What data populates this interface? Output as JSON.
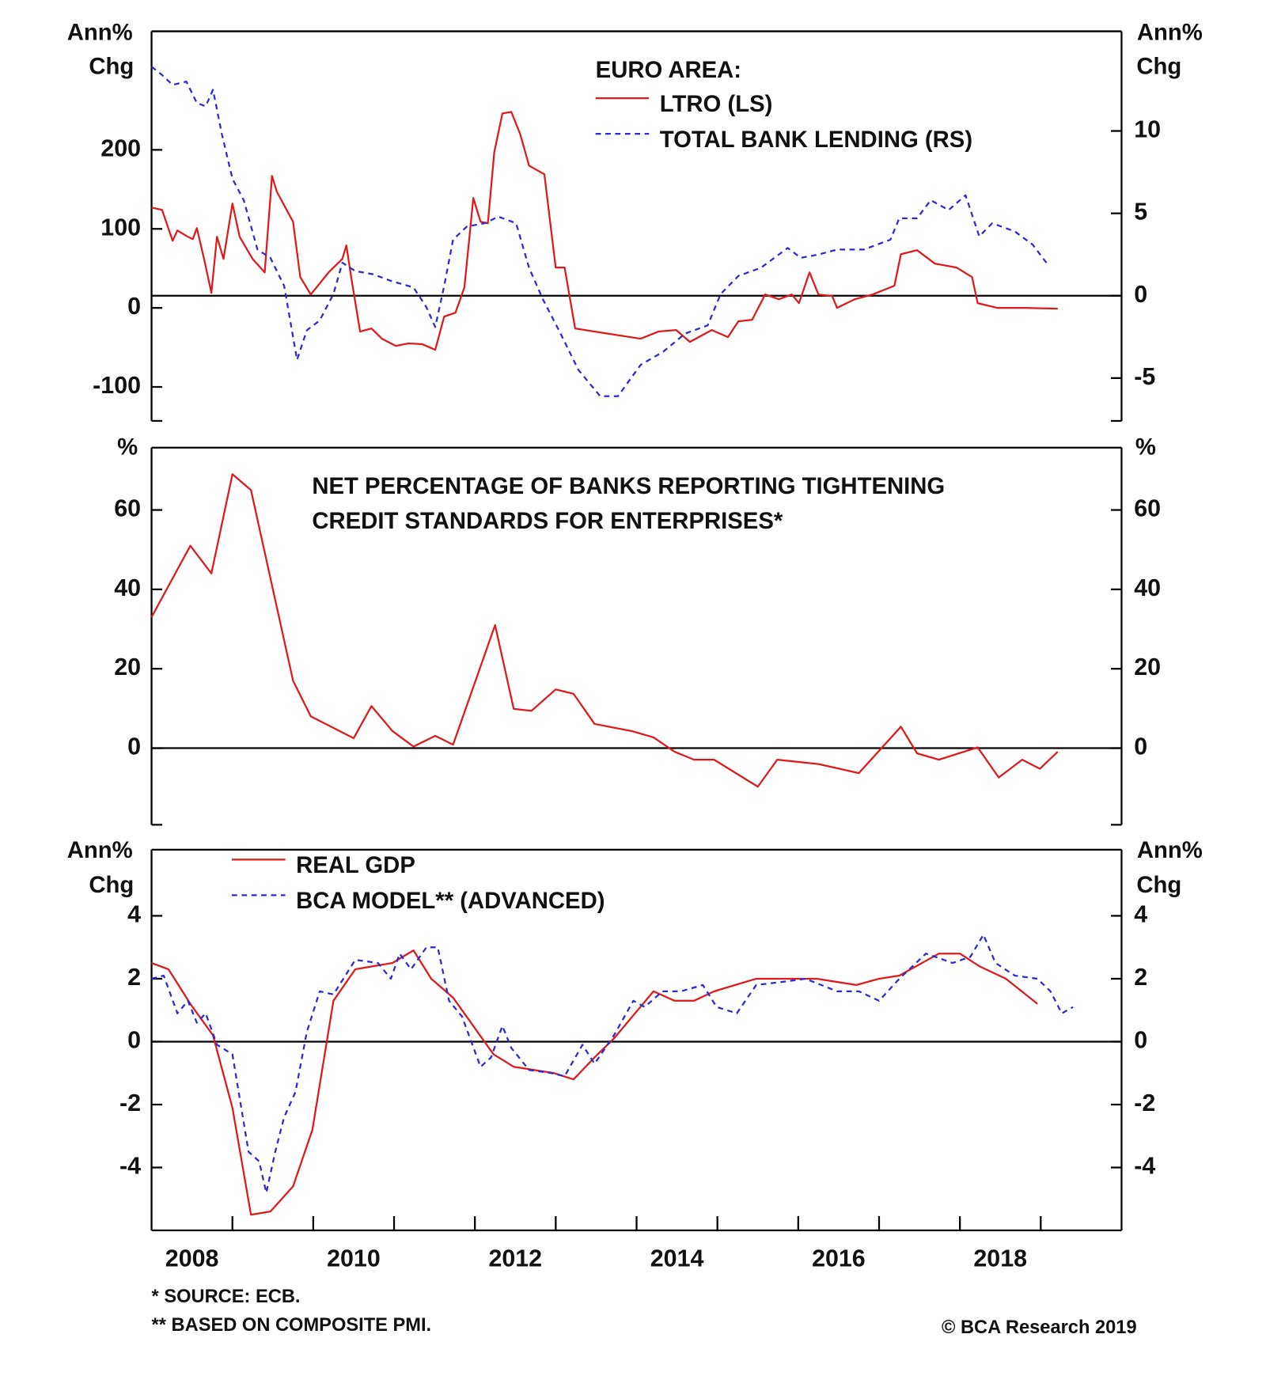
{
  "chart_data": [
    {
      "type": "line",
      "title": "EURO AREA:",
      "ylabel": [
        "Ann%",
        "Chg"
      ],
      "y2label": [
        "Ann%",
        "Chg"
      ],
      "xlim": [
        2008,
        2020
      ],
      "ylim": [
        -143,
        350
      ],
      "yticks": [
        -100,
        0,
        100,
        200
      ],
      "y2lim": [
        -7.6,
        16.05
      ],
      "y2ticks": [
        -5,
        0,
        5,
        10
      ],
      "zero_line": "y2",
      "legend": "top-center",
      "series": [
        {
          "name": "LTRO (LS)",
          "color": "#e0191b",
          "dash": false,
          "axis": "y",
          "x": [
            2008.0,
            2008.13,
            2008.26,
            2008.32,
            2008.45,
            2008.51,
            2008.56,
            2008.65,
            2008.74,
            2008.81,
            2008.89,
            2009.0,
            2009.09,
            2009.25,
            2009.4,
            2009.49,
            2009.55,
            2009.75,
            2009.84,
            2009.97,
            2010.19,
            2010.36,
            2010.41,
            2010.47,
            2010.58,
            2010.72,
            2010.85,
            2011.02,
            2011.18,
            2011.35,
            2011.51,
            2011.62,
            2011.76,
            2011.87,
            2011.98,
            2012.07,
            2012.16,
            2012.24,
            2012.34,
            2012.45,
            2012.56,
            2012.67,
            2012.86,
            2013.0,
            2013.11,
            2013.24,
            2013.61,
            2014.05,
            2014.27,
            2014.49,
            2014.66,
            2014.93,
            2015.13,
            2015.26,
            2015.43,
            2015.59,
            2015.76,
            2015.92,
            2016.01,
            2016.14,
            2016.25,
            2016.42,
            2016.48,
            2016.7,
            2016.92,
            2017.19,
            2017.27,
            2017.47,
            2017.69,
            2017.96,
            2018.15,
            2018.22,
            2018.46,
            2018.79,
            2019.21
          ],
          "values": [
            127,
            124,
            85,
            98,
            90,
            87,
            101,
            62,
            19,
            90,
            62,
            132,
            90,
            62,
            45,
            167,
            147,
            109,
            39,
            17,
            45,
            62,
            79,
            39,
            -30,
            -26,
            -39,
            -48,
            -45,
            -46,
            -53,
            -11,
            -6,
            26,
            139,
            109,
            107,
            197,
            246,
            248,
            220,
            180,
            169,
            51,
            51,
            -26,
            -32,
            -39,
            -30,
            -28,
            -43,
            -28,
            -37,
            -17,
            -15,
            17,
            11,
            17,
            6,
            45,
            17,
            15,
            0,
            11,
            17,
            28,
            68,
            73,
            56,
            51,
            39,
            6,
            0,
            0,
            -1
          ]
        },
        {
          "name": "TOTAL BANK LENDING (RS)",
          "color": "#2a2ad8",
          "dash": true,
          "axis": "y2",
          "x": [
            2008.0,
            2008.13,
            2008.26,
            2008.43,
            2008.56,
            2008.67,
            2008.76,
            2008.87,
            2009.0,
            2009.14,
            2009.31,
            2009.47,
            2009.64,
            2009.8,
            2009.92,
            2010.08,
            2010.25,
            2010.36,
            2010.52,
            2010.74,
            2010.96,
            2011.24,
            2011.4,
            2011.51,
            2011.62,
            2011.73,
            2011.9,
            2012.12,
            2012.29,
            2012.51,
            2012.67,
            2012.84,
            2013.06,
            2013.28,
            2013.55,
            2013.77,
            2014.05,
            2014.33,
            2014.6,
            2014.88,
            2015.04,
            2015.26,
            2015.54,
            2015.87,
            2016.03,
            2016.25,
            2016.48,
            2016.81,
            2017.14,
            2017.25,
            2017.47,
            2017.64,
            2017.86,
            2018.07,
            2018.24,
            2018.4,
            2018.68,
            2018.9,
            2019.07
          ],
          "values": [
            13.9,
            13.4,
            12.8,
            13.0,
            11.7,
            11.5,
            12.5,
            9.8,
            7.1,
            5.8,
            2.8,
            2.3,
            0.6,
            -3.9,
            -2.1,
            -1.5,
            0.1,
            2.0,
            1.5,
            1.3,
            0.9,
            0.5,
            -0.7,
            -1.9,
            0.6,
            3.4,
            4.2,
            4.4,
            4.8,
            4.4,
            1.7,
            -0.2,
            -2.3,
            -4.5,
            -6.1,
            -6.1,
            -4.2,
            -3.4,
            -2.3,
            -1.8,
            0.1,
            1.2,
            1.7,
            2.9,
            2.3,
            2.5,
            2.8,
            2.8,
            3.4,
            4.7,
            4.7,
            5.8,
            5.2,
            6.1,
            3.6,
            4.4,
            3.9,
            3.1,
            2.0
          ]
        }
      ]
    },
    {
      "type": "line",
      "title": [
        "NET PERCENTAGE OF BANKS REPORTING TIGHTENING",
        "CREDIT STANDARDS FOR ENTERPRISES*"
      ],
      "ylabel": [
        "%"
      ],
      "y2label": [
        "%"
      ],
      "xlim": [
        2008,
        2020
      ],
      "ylim": [
        -19.3,
        75.7
      ],
      "yticks": [
        0,
        20,
        40,
        60
      ],
      "y2lim": [
        -19.3,
        75.7
      ],
      "y2ticks": [
        0,
        20,
        40,
        60
      ],
      "zero_line": "y",
      "series": [
        {
          "color": "#e0191b",
          "dash": false,
          "axis": "y",
          "x": [
            2008.0,
            2008.48,
            2008.74,
            2009.0,
            2009.23,
            2009.75,
            2009.97,
            2010.5,
            2010.72,
            2010.98,
            2011.24,
            2011.51,
            2011.73,
            2012.25,
            2012.48,
            2012.7,
            2013.0,
            2013.22,
            2013.48,
            2013.94,
            2014.21,
            2014.47,
            2014.71,
            2014.96,
            2015.5,
            2015.74,
            2016.25,
            2016.75,
            2017.27,
            2017.47,
            2017.74,
            2018.22,
            2018.48,
            2018.77,
            2018.99,
            2019.21
          ],
          "values": [
            33,
            51,
            44,
            69,
            65,
            17,
            8,
            2.5,
            10.6,
            4.3,
            0.4,
            3.1,
            0.9,
            31,
            9.9,
            9.4,
            14.8,
            13.7,
            6.1,
            4.3,
            2.7,
            -0.9,
            -2.9,
            -2.9,
            -9.7,
            -2.9,
            -4.0,
            -6.3,
            5.4,
            -1.3,
            -2.9,
            0.2,
            -7.4,
            -2.9,
            -5.2,
            -0.9
          ]
        }
      ]
    },
    {
      "type": "line",
      "ylabel": [
        "Ann%",
        "Chg"
      ],
      "y2label": [
        "Ann%",
        "Chg"
      ],
      "xlim": [
        2008,
        2020
      ],
      "ylim": [
        -6.0,
        6.1
      ],
      "yticks": [
        -4,
        -2,
        0,
        2,
        4
      ],
      "y2lim": [
        -6.0,
        6.1
      ],
      "y2ticks": [
        -4,
        -2,
        0,
        2,
        4
      ],
      "xticks": [
        {
          "value": 2008.5,
          "label": "2008"
        },
        {
          "value": 2010.5,
          "label": "2010"
        },
        {
          "value": 2012.5,
          "label": "2012"
        },
        {
          "value": 2014.5,
          "label": "2014"
        },
        {
          "value": 2016.5,
          "label": "2016"
        },
        {
          "value": 2018.5,
          "label": "2018"
        }
      ],
      "xtick_marks": [
        2009,
        2010,
        2011,
        2012,
        2013,
        2014,
        2015,
        2016,
        2017,
        2018,
        2019
      ],
      "zero_line": "y",
      "legend": "top-left",
      "series": [
        {
          "name": "REAL GDP",
          "color": "#e0191b",
          "dash": false,
          "axis": "y",
          "x": [
            2008.0,
            2008.21,
            2008.48,
            2008.76,
            2009.0,
            2009.23,
            2009.47,
            2009.75,
            2009.99,
            2010.25,
            2010.52,
            2010.98,
            2011.24,
            2011.46,
            2011.73,
            2012.23,
            2012.48,
            2012.73,
            2012.98,
            2013.22,
            2013.48,
            2013.72,
            2014.21,
            2014.47,
            2014.71,
            2014.96,
            2015.48,
            2015.98,
            2016.23,
            2016.72,
            2017.0,
            2017.25,
            2017.74,
            2018.0,
            2018.24,
            2018.57,
            2018.96
          ],
          "values": [
            2.5,
            2.3,
            1.2,
            0.2,
            -2.1,
            -5.5,
            -5.4,
            -4.6,
            -2.8,
            1.3,
            2.3,
            2.5,
            2.9,
            2.0,
            1.4,
            -0.4,
            -0.8,
            -0.9,
            -1.0,
            -1.2,
            -0.5,
            0.1,
            1.6,
            1.3,
            1.3,
            1.6,
            2.0,
            2.0,
            2.0,
            1.8,
            2.0,
            2.1,
            2.8,
            2.8,
            2.4,
            2.0,
            1.2
          ]
        },
        {
          "name": "BCA MODEL** (ADVANCED)",
          "color": "#2a2ad8",
          "dash": true,
          "axis": "y",
          "x": [
            2008.0,
            2008.15,
            2008.32,
            2008.45,
            2008.56,
            2008.67,
            2008.81,
            2009.0,
            2009.2,
            2009.33,
            2009.42,
            2009.53,
            2009.64,
            2009.78,
            2009.92,
            2010.08,
            2010.25,
            2010.52,
            2010.8,
            2010.96,
            2011.07,
            2011.21,
            2011.4,
            2011.54,
            2011.68,
            2011.84,
            2012.07,
            2012.2,
            2012.34,
            2012.45,
            2012.67,
            2012.95,
            2013.11,
            2013.33,
            2013.48,
            2013.72,
            2013.96,
            2014.1,
            2014.32,
            2014.55,
            2014.82,
            2014.99,
            2015.24,
            2015.48,
            2015.81,
            2016.09,
            2016.48,
            2016.75,
            2017.0,
            2017.25,
            2017.58,
            2017.91,
            2018.13,
            2018.29,
            2018.44,
            2018.68,
            2018.96,
            2019.12,
            2019.26,
            2019.4
          ],
          "values": [
            2.0,
            2.1,
            0.9,
            1.3,
            0.6,
            0.9,
            -0.1,
            -0.4,
            -3.5,
            -3.8,
            -4.8,
            -3.5,
            -2.4,
            -1.6,
            0.3,
            1.6,
            1.5,
            2.6,
            2.5,
            2.0,
            2.8,
            2.3,
            3.0,
            3.0,
            1.3,
            0.8,
            -0.8,
            -0.5,
            0.5,
            -0.2,
            -0.9,
            -1.0,
            -1.1,
            -0.1,
            -0.7,
            0.2,
            1.3,
            1.1,
            1.6,
            1.6,
            1.8,
            1.1,
            0.9,
            1.8,
            1.9,
            2.0,
            1.6,
            1.6,
            1.3,
            2.0,
            2.8,
            2.5,
            2.7,
            3.4,
            2.5,
            2.1,
            2.0,
            1.6,
            0.9,
            1.1
          ]
        }
      ]
    }
  ],
  "footnotes": [
    "*  SOURCE: ECB.",
    "** BASED ON COMPOSITE PMI."
  ],
  "credit": "© BCA Research 2019"
}
